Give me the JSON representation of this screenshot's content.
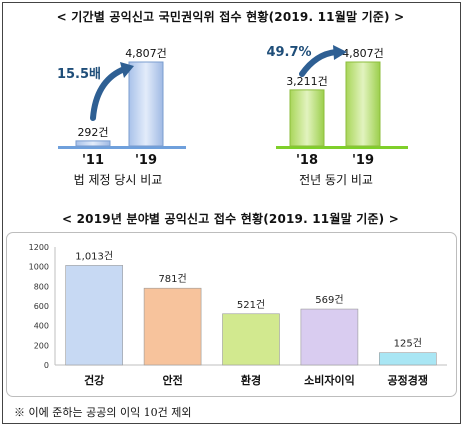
{
  "top_title": "< 기간별 공익신고 국민권익위 접수 현황(2019. 11월말 기준) >",
  "bottom_title": "< 2019년 분야별 공익신고 접수 현황(2019. 11월말 기준) >",
  "note": "※ 이에 준하는 공공의 이익 10건 제외",
  "colors": {
    "blue_bar": "#c9d8f2",
    "green_bar": "#c6e68c",
    "base_blue": "#6fa0dc",
    "base_green": "#7fcf2a",
    "arrow": "#2e5f93"
  },
  "chart_data": [
    {
      "type": "bar",
      "title": "",
      "caption": "법 제정 당시 비교",
      "categories": [
        "'11",
        "'19"
      ],
      "values": [
        292,
        4807
      ],
      "value_labels": [
        "292건",
        "4,807건"
      ],
      "growth_label": "15.5배"
    },
    {
      "type": "bar",
      "title": "",
      "caption": "전년 동기 비교",
      "categories": [
        "'18",
        "'19"
      ],
      "values": [
        3211,
        4807
      ],
      "value_labels": [
        "3,211건",
        "4,807건"
      ],
      "growth_label": "49.7%"
    },
    {
      "type": "bar",
      "title": "",
      "categories": [
        "건강",
        "안전",
        "환경",
        "소비자이익",
        "공정경쟁"
      ],
      "values": [
        1013,
        781,
        521,
        569,
        125
      ],
      "value_labels": [
        "1,013건",
        "781건",
        "521건",
        "569건",
        "125건"
      ],
      "bar_colors": [
        "#c7d9f3",
        "#f7c39c",
        "#d2e98f",
        "#d9ccf0",
        "#a9e6f4"
      ],
      "ylim": [
        0,
        1200
      ],
      "yticks": [
        0,
        200,
        400,
        600,
        800,
        1000,
        1200
      ],
      "grid": false
    }
  ]
}
